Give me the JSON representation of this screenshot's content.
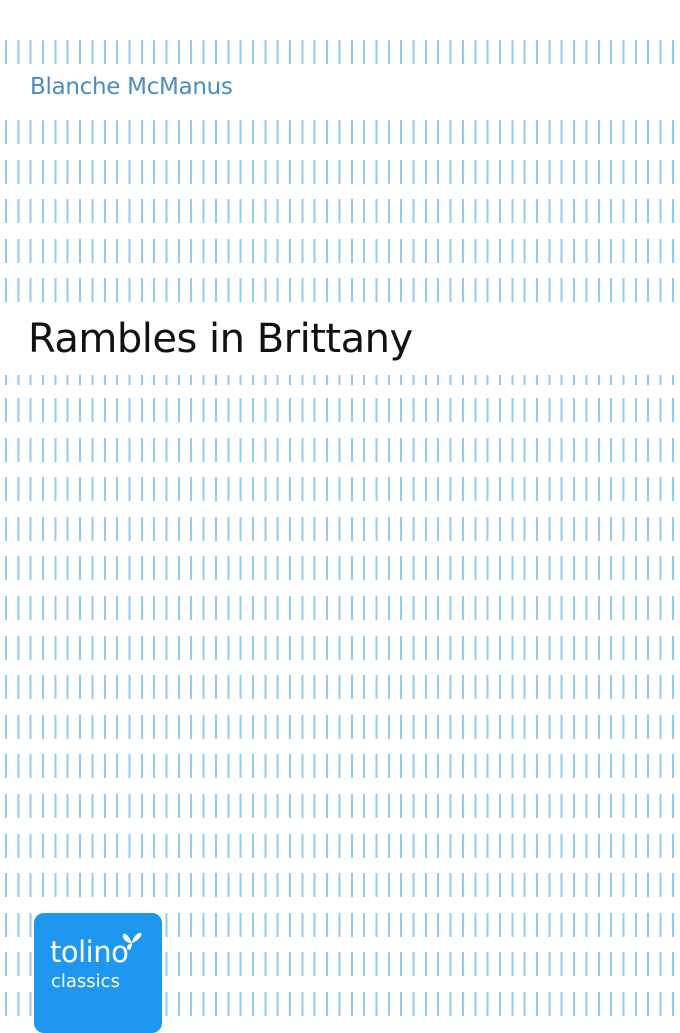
{
  "cover": {
    "author": "Blanche McManus",
    "title": "Rambles in Brittany",
    "publisher_logo": {
      "brand": "tolino",
      "sub": "classics",
      "icon": "butterfly-icon",
      "color": "#1d97ef"
    },
    "stripe_color": "#93cbec"
  }
}
